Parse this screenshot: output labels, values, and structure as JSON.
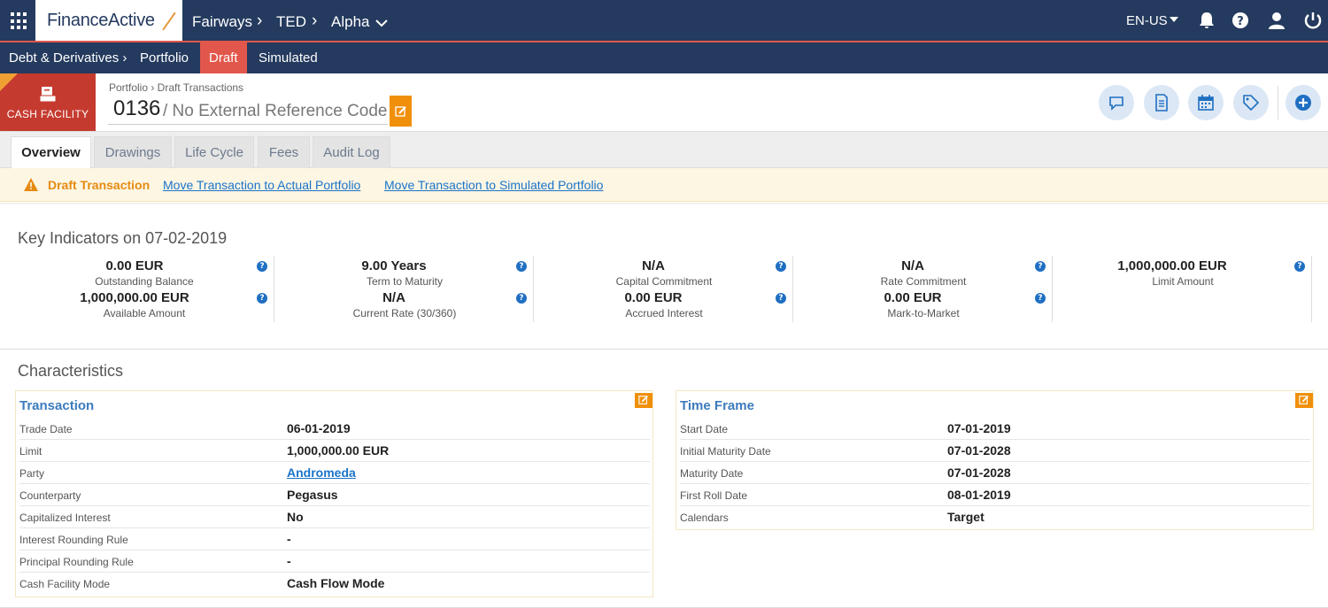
{
  "app": {
    "logo": "FinanceActive",
    "breadcrumb": [
      "Fairways",
      "TED",
      "Alpha"
    ],
    "language": "EN-US"
  },
  "nav": {
    "section": "Debt & Derivatives ›",
    "items": [
      "Portfolio",
      "Draft",
      "Simulated"
    ],
    "active": "Draft"
  },
  "header": {
    "badge": "CASH FACILITY",
    "breadcrumb": "Portfolio › Draft Transactions",
    "ref_number": "0136",
    "ref_text": "/ No External Reference Code",
    "actions": [
      "comment-icon",
      "document-icon",
      "calendar-icon",
      "tag-icon",
      "add-icon"
    ]
  },
  "tabs": [
    "Overview",
    "Drawings",
    "Life Cycle",
    "Fees",
    "Audit Log"
  ],
  "active_tab": "Overview",
  "banner": {
    "title": "Draft Transaction",
    "link1": "Move Transaction to Actual Portfolio",
    "link2": "Move Transaction to Simulated Portfolio"
  },
  "key_indicators": {
    "title": "Key Indicators on 07-02-2019",
    "columns": [
      [
        {
          "value": "0.00 EUR",
          "label": "Outstanding Balance"
        },
        {
          "value": "1,000,000.00 EUR",
          "label": "Available Amount"
        }
      ],
      [
        {
          "value": "9.00 Years",
          "label": "Term to Maturity"
        },
        {
          "value": "N/A",
          "label": "Current Rate (30/360)"
        }
      ],
      [
        {
          "value": "N/A",
          "label": "Capital Commitment"
        },
        {
          "value": "0.00 EUR",
          "label": "Accrued Interest"
        }
      ],
      [
        {
          "value": "N/A",
          "label": "Rate Commitment"
        },
        {
          "value": "0.00 EUR",
          "label": "Mark-to-Market"
        }
      ],
      [
        {
          "value": "1,000,000.00 EUR",
          "label": "Limit Amount"
        }
      ]
    ]
  },
  "characteristics": {
    "title": "Characteristics",
    "transaction": {
      "title": "Transaction",
      "rows": [
        {
          "label": "Trade Date",
          "value": "06-01-2019"
        },
        {
          "label": "Limit",
          "value": "1,000,000.00 EUR"
        },
        {
          "label": "Party",
          "value": "Andromeda",
          "link": true
        },
        {
          "label": "Counterparty",
          "value": "Pegasus"
        },
        {
          "label": "Capitalized Interest",
          "value": "No"
        },
        {
          "label": "Interest Rounding Rule",
          "value": "-"
        },
        {
          "label": "Principal Rounding Rule",
          "value": "-"
        },
        {
          "label": "Cash Facility Mode",
          "value": "Cash Flow Mode"
        }
      ]
    },
    "time_frame": {
      "title": "Time Frame",
      "rows": [
        {
          "label": "Start Date",
          "value": "07-01-2019"
        },
        {
          "label": "Initial Maturity Date",
          "value": "07-01-2028"
        },
        {
          "label": "Maturity Date",
          "value": "07-01-2028"
        },
        {
          "label": "First Roll Date",
          "value": "08-01-2019"
        },
        {
          "label": "Calendars",
          "value": "Target"
        }
      ]
    }
  }
}
